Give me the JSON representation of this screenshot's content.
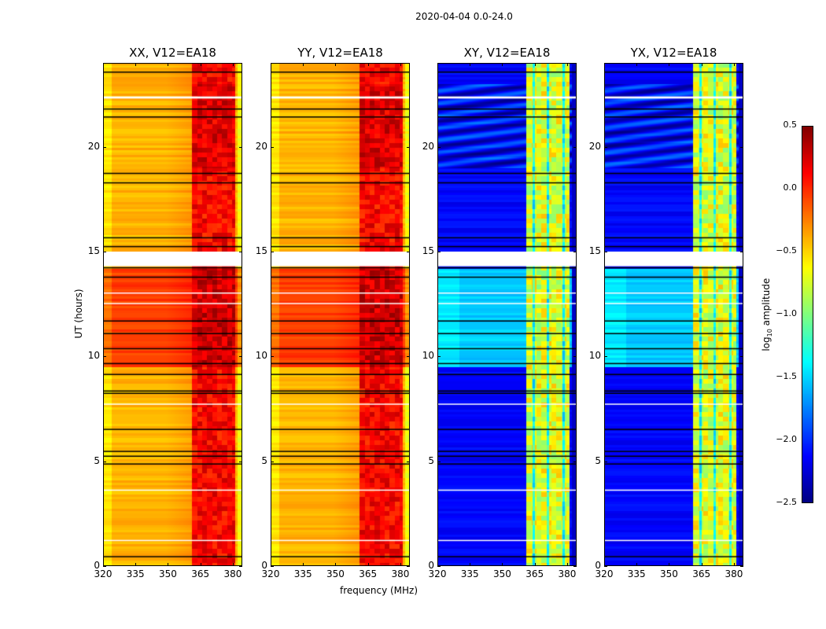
{
  "title": "2020-04-04 0.0-24.0",
  "chart_data": {
    "type": "heatmap",
    "title": "2020-04-04 0.0-24.0",
    "xlabel": "frequency (MHz)",
    "ylabel": "UT (hours)",
    "xlim": [
      320,
      384.4
    ],
    "ylim": [
      0,
      24
    ],
    "xticks": [
      "320",
      "335",
      "350",
      "365",
      "380"
    ],
    "yticks": [
      "0",
      "5",
      "10",
      "15",
      "20"
    ],
    "panels": [
      {
        "title": "XX, V12=EA18",
        "type": "parallel"
      },
      {
        "title": "YY, V12=EA18",
        "type": "parallel"
      },
      {
        "title": "XY, V12=EA18",
        "type": "cross"
      },
      {
        "title": "YX, V12=EA18",
        "type": "cross"
      }
    ],
    "colorbar": {
      "label": "log10 amplitude",
      "label_main": "log",
      "label_sub": "10",
      "label_rest": " amplitude",
      "colormap": "jet",
      "range": [
        -2.5,
        0.5
      ],
      "ticks": [
        "0.5",
        "0.0",
        "−0.5",
        "−1.0",
        "−1.5",
        "−2.0",
        "−2.5"
      ]
    },
    "flagged_black_ut": [
      0.45,
      4.87,
      5.24,
      5.47,
      6.52,
      8.24,
      8.35,
      9.14,
      9.66,
      10.37,
      11.09,
      11.69,
      13.78,
      14.23,
      15.24,
      15.66,
      18.28,
      18.73,
      21.42,
      21.8,
      23.56
    ],
    "flagged_white_ut": [
      [
        14.3,
        15.0
      ],
      [
        22.3,
        22.4
      ],
      [
        12.5,
        12.55
      ],
      [
        13.0,
        13.05
      ],
      [
        7.7,
        7.75
      ],
      [
        3.6,
        3.65
      ],
      [
        1.2,
        1.25
      ]
    ],
    "levels": {
      "parallel_base": -0.4,
      "parallel_band": 0.15,
      "parallel_active_base": -0.05,
      "cross_base": -2.2,
      "cross_band": -0.7,
      "cross_active_base": -1.6,
      "band_mhz": [
        361,
        381
      ],
      "active_ut": [
        9.5,
        14.2
      ]
    }
  }
}
